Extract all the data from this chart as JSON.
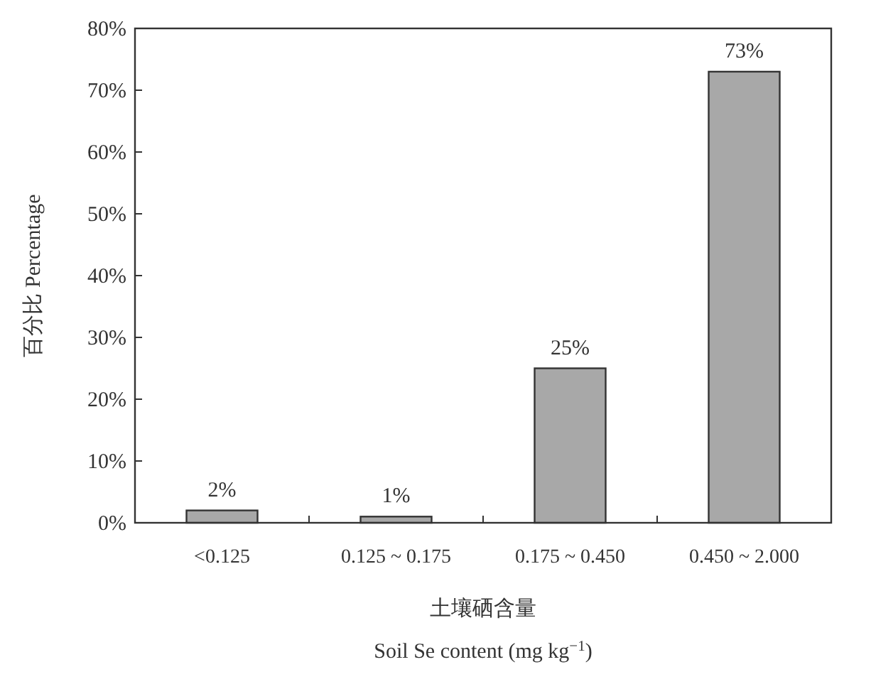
{
  "chart_data": {
    "type": "bar",
    "ylabel": "百分比 Percentage",
    "xlabel": "土壤硒含量\nSoil Se content (mg kg$^{−1}$)",
    "categories": [
      "<0.125",
      "0.125 ~ 0.175",
      "0.175 ~ 0.450",
      "0.450 ~ 2.000"
    ],
    "values": [
      2,
      1,
      25,
      73
    ],
    "color": "#a8a8a8",
    "value_labels": [
      "2%",
      "1%",
      "25%",
      "73%"
    ],
    "ylim": [
      0,
      80
    ],
    "yticks": [
      {
        "value": 0,
        "label": "0%"
      },
      {
        "value": 10,
        "label": "10%"
      },
      {
        "value": 20,
        "label": "20%"
      },
      {
        "value": 30,
        "label": "30%"
      },
      {
        "value": 40,
        "label": "40%"
      },
      {
        "value": 50,
        "label": "50%"
      },
      {
        "value": 60,
        "label": "60%"
      },
      {
        "value": 70,
        "label": "70%"
      },
      {
        "value": 80,
        "label": "80%"
      }
    ],
    "grid": false
  }
}
